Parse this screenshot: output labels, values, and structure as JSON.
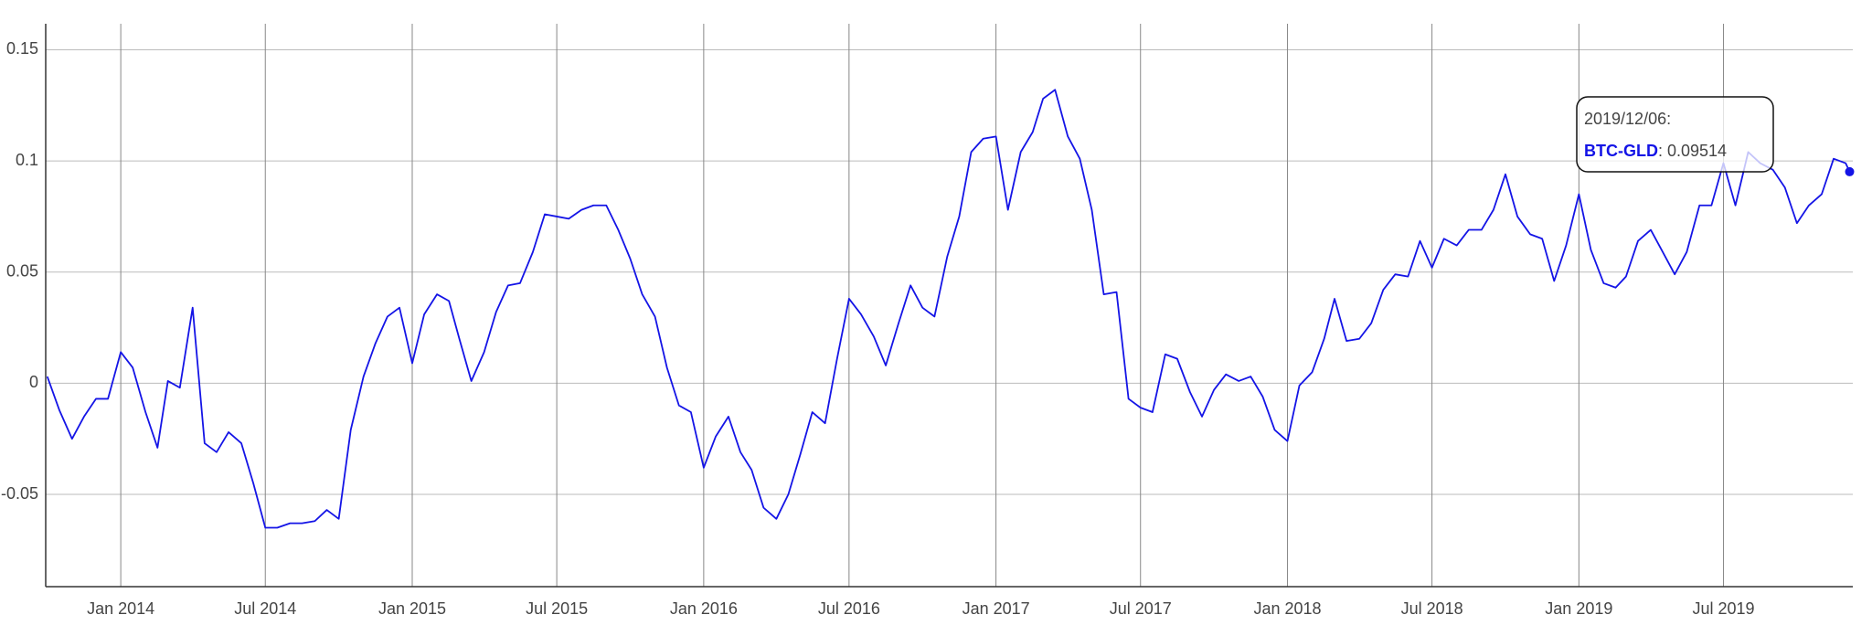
{
  "chart_data": {
    "type": "line",
    "x": [
      "2013/10/01",
      "2013/10/16",
      "2013/11/01",
      "2013/11/16",
      "2013/12/01",
      "2013/12/16",
      "2014/01/01",
      "2014/01/16",
      "2014/02/01",
      "2014/02/16",
      "2014/03/01",
      "2014/03/16",
      "2014/04/01",
      "2014/04/16",
      "2014/05/01",
      "2014/05/16",
      "2014/06/01",
      "2014/06/16",
      "2014/07/01",
      "2014/07/16",
      "2014/08/01",
      "2014/08/16",
      "2014/09/01",
      "2014/09/16",
      "2014/10/01",
      "2014/10/16",
      "2014/11/01",
      "2014/11/16",
      "2014/12/01",
      "2014/12/16",
      "2015/01/01",
      "2015/01/16",
      "2015/02/01",
      "2015/02/16",
      "2015/03/01",
      "2015/03/16",
      "2015/04/01",
      "2015/04/16",
      "2015/05/01",
      "2015/05/16",
      "2015/06/01",
      "2015/06/16",
      "2015/07/01",
      "2015/07/16",
      "2015/08/01",
      "2015/08/16",
      "2015/09/01",
      "2015/09/16",
      "2015/10/01",
      "2015/10/16",
      "2015/11/01",
      "2015/11/16",
      "2015/12/01",
      "2015/12/16",
      "2016/01/01",
      "2016/01/16",
      "2016/02/01",
      "2016/02/16",
      "2016/03/01",
      "2016/03/16",
      "2016/04/01",
      "2016/04/16",
      "2016/05/01",
      "2016/05/16",
      "2016/06/01",
      "2016/06/16",
      "2016/07/01",
      "2016/07/16",
      "2016/08/01",
      "2016/08/16",
      "2016/09/01",
      "2016/09/16",
      "2016/10/01",
      "2016/10/16",
      "2016/11/01",
      "2016/11/16",
      "2016/12/01",
      "2016/12/16",
      "2017/01/01",
      "2017/01/16",
      "2017/02/01",
      "2017/02/16",
      "2017/03/01",
      "2017/03/16",
      "2017/04/01",
      "2017/04/16",
      "2017/05/01",
      "2017/05/16",
      "2017/06/01",
      "2017/06/16",
      "2017/07/01",
      "2017/07/16",
      "2017/08/01",
      "2017/08/16",
      "2017/09/01",
      "2017/09/16",
      "2017/10/01",
      "2017/10/16",
      "2017/11/01",
      "2017/11/16",
      "2017/12/01",
      "2017/12/16",
      "2018/01/01",
      "2018/01/16",
      "2018/02/01",
      "2018/02/16",
      "2018/03/01",
      "2018/03/16",
      "2018/04/01",
      "2018/04/16",
      "2018/05/01",
      "2018/05/16",
      "2018/06/01",
      "2018/06/16",
      "2018/07/01",
      "2018/07/16",
      "2018/08/01",
      "2018/08/16",
      "2018/09/01",
      "2018/09/16",
      "2018/10/01",
      "2018/10/16",
      "2018/11/01",
      "2018/11/16",
      "2018/12/01",
      "2018/12/16",
      "2019/01/01",
      "2019/01/16",
      "2019/02/01",
      "2019/02/16",
      "2019/03/01",
      "2019/03/16",
      "2019/04/01",
      "2019/04/16",
      "2019/05/01",
      "2019/05/16",
      "2019/06/01",
      "2019/06/16",
      "2019/07/01",
      "2019/07/16",
      "2019/08/01",
      "2019/08/16",
      "2019/09/01",
      "2019/09/16",
      "2019/10/01",
      "2019/10/16",
      "2019/11/01",
      "2019/11/16",
      "2019/12/01",
      "2019/12/06"
    ],
    "series": [
      {
        "name": "BTC-GLD",
        "color": "#1414e6",
        "values": [
          0.003,
          -0.012,
          -0.025,
          -0.015,
          -0.007,
          -0.007,
          0.014,
          0.007,
          -0.013,
          -0.029,
          0.001,
          -0.002,
          0.034,
          -0.027,
          -0.031,
          -0.022,
          -0.027,
          -0.045,
          -0.065,
          -0.065,
          -0.063,
          -0.063,
          -0.062,
          -0.057,
          -0.061,
          -0.021,
          0.003,
          0.018,
          0.03,
          0.034,
          0.009,
          0.031,
          0.04,
          0.037,
          0.02,
          0.001,
          0.014,
          0.032,
          0.044,
          0.045,
          0.059,
          0.076,
          0.075,
          0.074,
          0.078,
          0.08,
          0.08,
          0.069,
          0.056,
          0.04,
          0.03,
          0.007,
          -0.01,
          -0.013,
          -0.038,
          -0.024,
          -0.015,
          -0.031,
          -0.039,
          -0.056,
          -0.061,
          -0.05,
          -0.032,
          -0.013,
          -0.018,
          0.011,
          0.038,
          0.031,
          0.021,
          0.008,
          0.027,
          0.044,
          0.034,
          0.03,
          0.057,
          0.075,
          0.104,
          0.11,
          0.111,
          0.078,
          0.104,
          0.113,
          0.128,
          0.132,
          0.111,
          0.101,
          0.078,
          0.04,
          0.041,
          -0.007,
          -0.011,
          -0.013,
          0.013,
          0.011,
          -0.004,
          -0.015,
          -0.003,
          0.004,
          0.001,
          0.003,
          -0.006,
          -0.021,
          -0.026,
          -0.001,
          0.005,
          0.02,
          0.038,
          0.019,
          0.02,
          0.027,
          0.042,
          0.049,
          0.048,
          0.064,
          0.052,
          0.065,
          0.062,
          0.069,
          0.069,
          0.078,
          0.094,
          0.075,
          0.067,
          0.065,
          0.046,
          0.062,
          0.085,
          0.06,
          0.045,
          0.043,
          0.048,
          0.064,
          0.069,
          0.059,
          0.049,
          0.059,
          0.08,
          0.08,
          0.099,
          0.08,
          0.104,
          0.099,
          0.096,
          0.088,
          0.072,
          0.08,
          0.085,
          0.101,
          0.099,
          0.09514
        ]
      }
    ],
    "xlim": [
      "2013/09/29",
      "2019/12/10"
    ],
    "xticks": [
      {
        "value": "2014/01/01",
        "label": "Jan 2014"
      },
      {
        "value": "2014/07/01",
        "label": "Jul 2014"
      },
      {
        "value": "2015/01/01",
        "label": "Jan 2015"
      },
      {
        "value": "2015/07/01",
        "label": "Jul 2015"
      },
      {
        "value": "2016/01/01",
        "label": "Jan 2016"
      },
      {
        "value": "2016/07/01",
        "label": "Jul 2016"
      },
      {
        "value": "2017/01/01",
        "label": "Jan 2017"
      },
      {
        "value": "2017/07/01",
        "label": "Jul 2017"
      },
      {
        "value": "2018/01/01",
        "label": "Jan 2018"
      },
      {
        "value": "2018/07/01",
        "label": "Jul 2018"
      },
      {
        "value": "2019/01/01",
        "label": "Jan 2019"
      },
      {
        "value": "2019/07/01",
        "label": "Jul 2019"
      }
    ],
    "ylim": [
      -0.0915,
      0.1617
    ],
    "yticks": [
      -0.05,
      0,
      0.05,
      0.1,
      0.15
    ],
    "grid": true,
    "tooltip": {
      "title": "2019/12/06:",
      "series": "BTC-GLD",
      "value_label": ": 0.09514"
    }
  }
}
